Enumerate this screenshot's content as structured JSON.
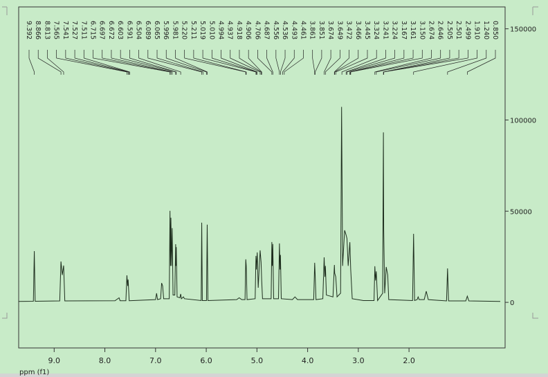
{
  "chart_data": {
    "type": "line",
    "x_label": "ppm (f1)",
    "xlim": [
      9.7,
      0.2
    ],
    "ylim": [
      -25000,
      162000
    ],
    "xticks": [
      {
        "value": 9,
        "label": "9.0"
      },
      {
        "value": 8,
        "label": "8.0"
      },
      {
        "value": 7,
        "label": "7.0"
      },
      {
        "value": 6,
        "label": "6.0"
      },
      {
        "value": 5,
        "label": "5.0"
      },
      {
        "value": 4,
        "label": "4.0"
      },
      {
        "value": 3,
        "label": "3.0"
      },
      {
        "value": 2,
        "label": "2.0"
      }
    ],
    "yticks": [
      0,
      50000,
      100000,
      150000
    ],
    "x": [
      9.7,
      9.41,
      9.392,
      9.375,
      8.89,
      8.866,
      8.84,
      8.813,
      8.79,
      7.8,
      7.72,
      7.7,
      7.585,
      7.565,
      7.55,
      7.541,
      7.52,
      7.0,
      6.98,
      6.96,
      6.9,
      6.88,
      6.86,
      6.84,
      6.73,
      6.715,
      6.705,
      6.697,
      6.685,
      6.672,
      6.655,
      6.62,
      6.603,
      6.597,
      6.591,
      6.575,
      6.52,
      6.504,
      6.49,
      6.45,
      6.43,
      6.1,
      6.089,
      6.077,
      5.995,
      5.981,
      5.967,
      5.4,
      5.35,
      5.3,
      5.235,
      5.22,
      5.211,
      5.195,
      5.035,
      5.019,
      5.01,
      4.994,
      4.975,
      4.937,
      4.918,
      4.906,
      4.89,
      4.72,
      4.706,
      4.697,
      4.687,
      4.67,
      4.575,
      4.556,
      4.545,
      4.536,
      4.52,
      4.3,
      4.25,
      4.2,
      3.88,
      3.861,
      3.851,
      3.835,
      3.7,
      3.674,
      3.66,
      3.649,
      3.63,
      3.5,
      3.472,
      3.466,
      3.445,
      3.42,
      3.35,
      3.33,
      3.31,
      3.27,
      3.241,
      3.224,
      3.2,
      3.167,
      3.15,
      3.12,
      2.9,
      2.69,
      2.674,
      2.66,
      2.646,
      2.62,
      2.52,
      2.505,
      2.499,
      2.48,
      2.45,
      2.42,
      2.4,
      1.93,
      1.91,
      1.89,
      1.84,
      1.82,
      1.8,
      1.7,
      1.66,
      1.62,
      1.26,
      1.24,
      1.22,
      0.88,
      0.85,
      0.82,
      0.2
    ],
    "series": [
      {
        "name": "spectrum",
        "color": "#1e2e1e",
        "values": [
          500,
          600,
          28100,
          600,
          800,
          22400,
          15000,
          20200,
          800,
          900,
          2500,
          900,
          900,
          14800,
          9000,
          12500,
          900,
          1500,
          5000,
          1500,
          2000,
          10600,
          9000,
          2000,
          2000,
          50200,
          20000,
          46400,
          20000,
          40700,
          4000,
          4000,
          31900,
          20000,
          30300,
          3000,
          2500,
          4600,
          2000,
          3000,
          2000,
          1000,
          43700,
          1000,
          1000,
          42600,
          1000,
          1500,
          2500,
          1500,
          1500,
          23600,
          20000,
          1500,
          2000,
          25500,
          18000,
          27400,
          8000,
          28500,
          22000,
          12000,
          2000,
          2000,
          33100,
          20000,
          32000,
          2000,
          2000,
          32300,
          18000,
          26000,
          2000,
          1500,
          3000,
          1500,
          1500,
          21700,
          15000,
          1500,
          2000,
          24700,
          14000,
          20000,
          4000,
          3000,
          20500,
          16000,
          14000,
          3000,
          5000,
          107200,
          20000,
          39500,
          36900,
          35000,
          20000,
          33000,
          18000,
          2000,
          1000,
          1000,
          19800,
          12000,
          17000,
          1000,
          5000,
          93200,
          40000,
          5000,
          19400,
          15000,
          1500,
          1000,
          37600,
          1000,
          1500,
          3000,
          1500,
          1500,
          6100,
          1500,
          800,
          18600,
          800,
          800,
          3400,
          800,
          500
        ]
      }
    ],
    "peak_labels": [
      {
        "value": 9.392,
        "label": "9.392"
      },
      {
        "value": 8.866,
        "label": "8.866"
      },
      {
        "value": 8.813,
        "label": "8.813"
      },
      {
        "value": 7.565,
        "label": "7.565"
      },
      {
        "value": 7.541,
        "label": "7.541"
      },
      {
        "value": 7.527,
        "label": "7.527"
      },
      {
        "value": 7.511,
        "label": "7.511"
      },
      {
        "value": 6.715,
        "label": "6.715"
      },
      {
        "value": 6.697,
        "label": "6.697"
      },
      {
        "value": 6.672,
        "label": "6.672"
      },
      {
        "value": 6.603,
        "label": "6.603"
      },
      {
        "value": 6.591,
        "label": "6.591"
      },
      {
        "value": 6.504,
        "label": "6.504"
      },
      {
        "value": 6.089,
        "label": "6.089"
      },
      {
        "value": 6.065,
        "label": "6.065"
      },
      {
        "value": 5.996,
        "label": "5.996"
      },
      {
        "value": 5.981,
        "label": "5.981"
      },
      {
        "value": 5.22,
        "label": "5.220"
      },
      {
        "value": 5.211,
        "label": "5.211"
      },
      {
        "value": 5.019,
        "label": "5.019"
      },
      {
        "value": 5.01,
        "label": "5.010"
      },
      {
        "value": 4.994,
        "label": "4.994"
      },
      {
        "value": 4.937,
        "label": "4.937"
      },
      {
        "value": 4.918,
        "label": "4.918"
      },
      {
        "value": 4.906,
        "label": "4.906"
      },
      {
        "value": 4.706,
        "label": "4.706"
      },
      {
        "value": 4.687,
        "label": "4.687"
      },
      {
        "value": 4.556,
        "label": "4.556"
      },
      {
        "value": 4.536,
        "label": "4.536"
      },
      {
        "value": 4.493,
        "label": "4.493"
      },
      {
        "value": 4.461,
        "label": "4.461"
      },
      {
        "value": 3.861,
        "label": "3.861"
      },
      {
        "value": 3.851,
        "label": "3.851"
      },
      {
        "value": 3.674,
        "label": "3.674"
      },
      {
        "value": 3.649,
        "label": "3.649"
      },
      {
        "value": 3.472,
        "label": "3.472"
      },
      {
        "value": 3.466,
        "label": "3.466"
      },
      {
        "value": 3.445,
        "label": "3.445"
      },
      {
        "value": 3.324,
        "label": "3.324"
      },
      {
        "value": 3.241,
        "label": "3.241"
      },
      {
        "value": 3.224,
        "label": "3.224"
      },
      {
        "value": 3.167,
        "label": "3.167"
      },
      {
        "value": 3.161,
        "label": "3.161"
      },
      {
        "value": 3.15,
        "label": "3.150"
      },
      {
        "value": 2.674,
        "label": "2.674"
      },
      {
        "value": 2.646,
        "label": "2.646"
      },
      {
        "value": 2.505,
        "label": "2.505"
      },
      {
        "value": 2.501,
        "label": "2.501"
      },
      {
        "value": 2.499,
        "label": "2.499"
      },
      {
        "value": 1.91,
        "label": "1.910"
      },
      {
        "value": 1.24,
        "label": "1.240"
      },
      {
        "value": 0.85,
        "label": "0.850"
      }
    ]
  }
}
